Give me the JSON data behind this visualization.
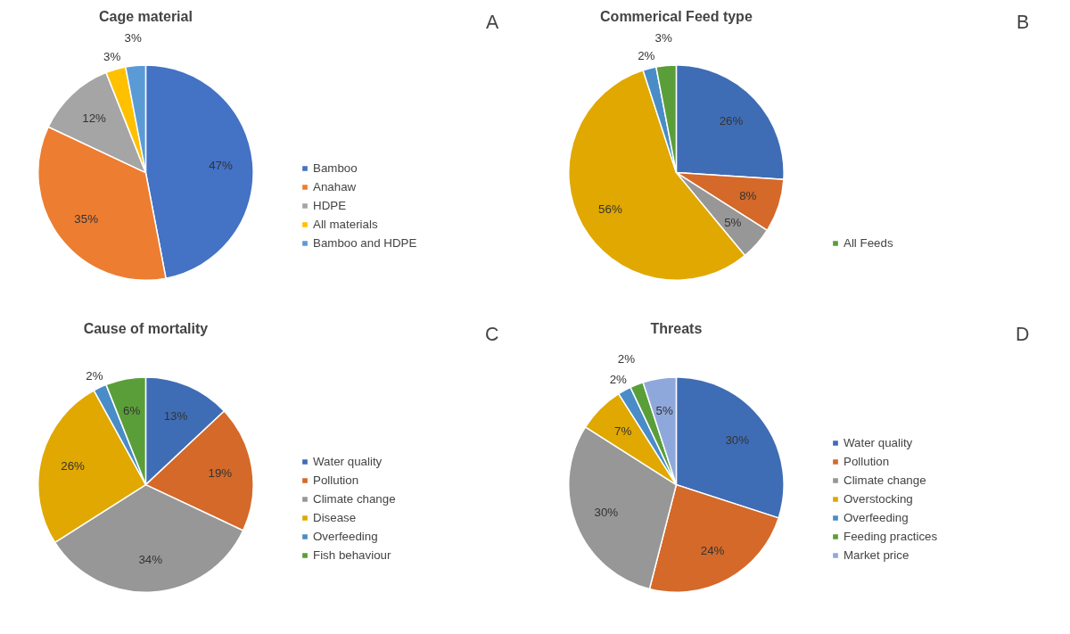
{
  "chart_data": [
    {
      "type": "pie",
      "title": "Cage material",
      "annotations": [
        "A"
      ],
      "legend": "right",
      "categories": [
        "Bamboo",
        "Anahaw",
        "HDPE",
        "All materials",
        "Bamboo and HDPE"
      ],
      "values": [
        47,
        35,
        12,
        3,
        3
      ],
      "colors": [
        "#4472c4",
        "#ed7d31",
        "#a5a5a5",
        "#ffc000",
        "#5b9bd5"
      ],
      "value_labels": [
        "47%",
        "35%",
        "12%",
        "3%",
        "3%"
      ]
    },
    {
      "type": "pie",
      "title": "Commerical Feed type",
      "annotations": [
        "B"
      ],
      "legend": "right",
      "categories": [
        null,
        null,
        null,
        null,
        null,
        "All Feeds"
      ],
      "values": [
        26,
        8,
        5,
        56,
        2,
        3
      ],
      "colors": [
        "#3f6db5",
        "#d4692a",
        "#979797",
        "#e0a800",
        "#4a8cc7",
        "#5a9e3a"
      ],
      "value_labels": [
        "26%",
        "8%",
        "5%",
        "56%",
        "2%",
        "3%"
      ]
    },
    {
      "type": "pie",
      "title": "Cause of mortality",
      "annotations": [
        "C"
      ],
      "legend": "right",
      "categories": [
        "Water quality",
        "Pollution",
        "Climate change",
        "Disease",
        "Overfeeding",
        "Fish behaviour"
      ],
      "values": [
        13,
        19,
        34,
        26,
        2,
        6
      ],
      "colors": [
        "#3f6db5",
        "#d4692a",
        "#979797",
        "#e0a800",
        "#4a8cc7",
        "#5a9e3a"
      ],
      "value_labels": [
        "13%",
        "19%",
        "34%",
        "26%",
        "2%",
        "6%"
      ]
    },
    {
      "type": "pie",
      "title": "Threats",
      "annotations": [
        "D"
      ],
      "legend": "right",
      "categories": [
        "Water quality",
        "Pollution",
        "Climate change",
        "Overstocking",
        "Overfeeding",
        "Feeding practices",
        "Market price"
      ],
      "values": [
        30,
        24,
        30,
        7,
        2,
        2,
        5
      ],
      "colors": [
        "#3f6db5",
        "#d4692a",
        "#979797",
        "#e0a800",
        "#4a8cc7",
        "#5a9e3a",
        "#8fa8dc"
      ],
      "value_labels": [
        "30%",
        "24%",
        "30%",
        "7%",
        "2%",
        "2%",
        "5%"
      ]
    }
  ]
}
